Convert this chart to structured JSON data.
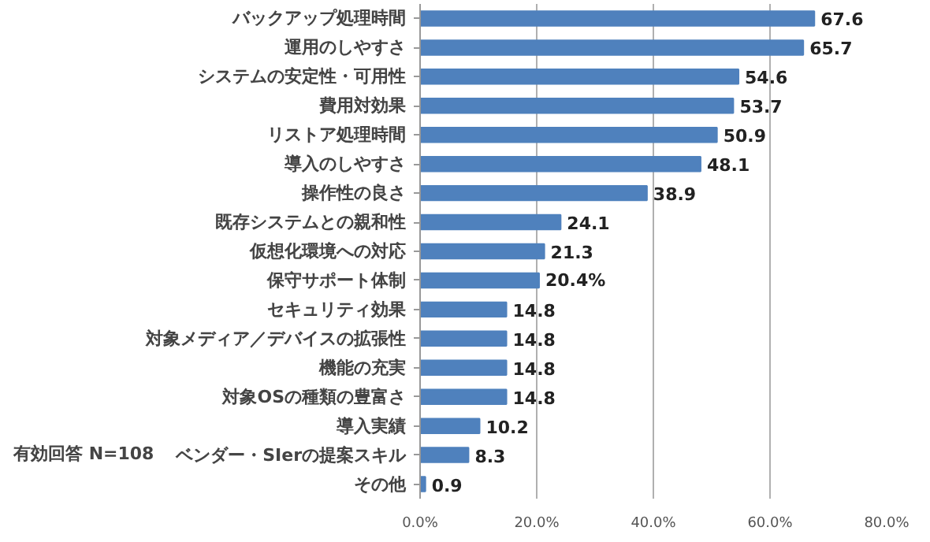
{
  "chart_data": {
    "type": "bar",
    "orientation": "horizontal",
    "categories": [
      "バックアップ処理時間",
      "運用のしやすさ",
      "システムの安定性・可用性",
      "費用対効果",
      "リストア処理時間",
      "導入のしやすさ",
      "操作性の良さ",
      "既存システムとの親和性",
      "仮想化環境への対応",
      "保守サポート体制",
      "セキュリティ効果",
      "対象メディア／デバイスの拡張性",
      "機能の充実",
      "対象OSの種類の豊富さ",
      "導入実績",
      "ベンダー・SIerの提案スキル",
      "その他"
    ],
    "values": [
      67.6,
      65.7,
      54.6,
      53.7,
      50.9,
      48.1,
      38.9,
      24.1,
      21.3,
      20.4,
      14.8,
      14.8,
      14.8,
      14.8,
      10.2,
      8.3,
      0.9
    ],
    "value_labels": [
      "67.6",
      "65.7",
      "54.6",
      "53.7",
      "50.9",
      "48.1",
      "38.9",
      "24.1",
      "21.3",
      "20.4%",
      "14.8",
      "14.8",
      "14.8",
      "14.8",
      "10.2",
      "8.3",
      "0.9"
    ],
    "color": "#4f81bd",
    "xlim": [
      0,
      80
    ],
    "xticks": [
      {
        "value": 0,
        "label": "0.0%"
      },
      {
        "value": 20,
        "label": "20.0%"
      },
      {
        "value": 40,
        "label": "40.0%"
      },
      {
        "value": 60,
        "label": "60.0%"
      },
      {
        "value": 80,
        "label": "80.0%"
      }
    ],
    "grid": "x",
    "annotations": [
      "有効回答 N=108"
    ]
  }
}
